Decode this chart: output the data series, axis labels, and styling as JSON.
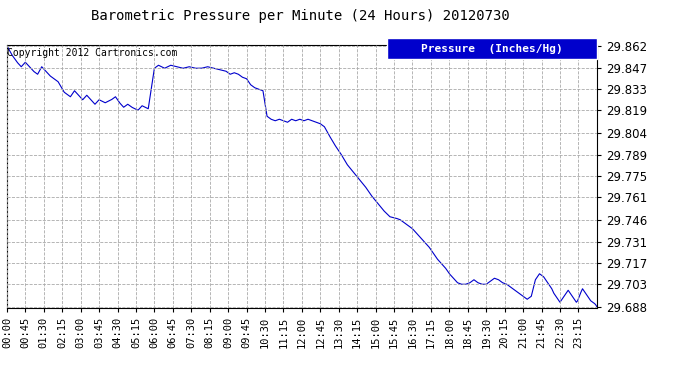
{
  "title": "Barometric Pressure per Minute (24 Hours) 20120730",
  "copyright": "Copyright 2012 Cartronics.com",
  "legend_label": "Pressure  (Inches/Hg)",
  "background_color": "#ffffff",
  "plot_bg_color": "#ffffff",
  "line_color": "#0000cc",
  "legend_bg_color": "#0000cc",
  "legend_text_color": "#ffffff",
  "grid_color": "#aaaaaa",
  "yticks": [
    29.688,
    29.703,
    29.717,
    29.731,
    29.746,
    29.761,
    29.775,
    29.789,
    29.804,
    29.819,
    29.833,
    29.847,
    29.862
  ],
  "xtick_labels": [
    "00:00",
    "00:45",
    "01:30",
    "02:15",
    "03:00",
    "03:45",
    "04:30",
    "05:15",
    "06:00",
    "06:45",
    "07:30",
    "08:15",
    "09:00",
    "09:45",
    "10:30",
    "11:15",
    "12:00",
    "12:45",
    "13:30",
    "14:15",
    "15:00",
    "15:45",
    "16:30",
    "17:15",
    "18:00",
    "18:45",
    "19:30",
    "20:15",
    "21:00",
    "21:45",
    "22:30",
    "23:15"
  ],
  "ymin": 29.688,
  "ymax": 29.862,
  "waypoints": [
    [
      0,
      29.862
    ],
    [
      12,
      29.856
    ],
    [
      25,
      29.851
    ],
    [
      35,
      29.848
    ],
    [
      45,
      29.851
    ],
    [
      55,
      29.848
    ],
    [
      65,
      29.845
    ],
    [
      75,
      29.843
    ],
    [
      85,
      29.848
    ],
    [
      95,
      29.845
    ],
    [
      105,
      29.842
    ],
    [
      115,
      29.84
    ],
    [
      125,
      29.838
    ],
    [
      140,
      29.831
    ],
    [
      155,
      29.828
    ],
    [
      165,
      29.832
    ],
    [
      175,
      29.829
    ],
    [
      185,
      29.826
    ],
    [
      195,
      29.829
    ],
    [
      205,
      29.826
    ],
    [
      215,
      29.823
    ],
    [
      225,
      29.826
    ],
    [
      240,
      29.824
    ],
    [
      255,
      29.826
    ],
    [
      265,
      29.828
    ],
    [
      275,
      29.824
    ],
    [
      285,
      29.821
    ],
    [
      295,
      29.823
    ],
    [
      305,
      29.821
    ],
    [
      320,
      29.819
    ],
    [
      330,
      29.822
    ],
    [
      345,
      29.82
    ],
    [
      360,
      29.847
    ],
    [
      370,
      29.849
    ],
    [
      385,
      29.847
    ],
    [
      400,
      29.849
    ],
    [
      415,
      29.848
    ],
    [
      430,
      29.847
    ],
    [
      445,
      29.848
    ],
    [
      460,
      29.847
    ],
    [
      475,
      29.847
    ],
    [
      490,
      29.848
    ],
    [
      505,
      29.847
    ],
    [
      520,
      29.846
    ],
    [
      535,
      29.845
    ],
    [
      545,
      29.843
    ],
    [
      555,
      29.844
    ],
    [
      565,
      29.843
    ],
    [
      575,
      29.841
    ],
    [
      585,
      29.84
    ],
    [
      595,
      29.836
    ],
    [
      605,
      29.834
    ],
    [
      615,
      29.833
    ],
    [
      625,
      29.832
    ],
    [
      635,
      29.815
    ],
    [
      645,
      29.813
    ],
    [
      655,
      29.812
    ],
    [
      665,
      29.813
    ],
    [
      675,
      29.812
    ],
    [
      685,
      29.811
    ],
    [
      695,
      29.813
    ],
    [
      705,
      29.812
    ],
    [
      715,
      29.813
    ],
    [
      725,
      29.812
    ],
    [
      735,
      29.813
    ],
    [
      745,
      29.812
    ],
    [
      755,
      29.811
    ],
    [
      765,
      29.81
    ],
    [
      775,
      29.808
    ],
    [
      785,
      29.803
    ],
    [
      800,
      29.796
    ],
    [
      815,
      29.79
    ],
    [
      830,
      29.783
    ],
    [
      845,
      29.778
    ],
    [
      860,
      29.773
    ],
    [
      875,
      29.768
    ],
    [
      890,
      29.762
    ],
    [
      905,
      29.757
    ],
    [
      920,
      29.752
    ],
    [
      935,
      29.748
    ],
    [
      950,
      29.747
    ],
    [
      960,
      29.746
    ],
    [
      970,
      29.744
    ],
    [
      980,
      29.742
    ],
    [
      990,
      29.74
    ],
    [
      1000,
      29.737
    ],
    [
      1010,
      29.734
    ],
    [
      1020,
      29.731
    ],
    [
      1030,
      29.728
    ],
    [
      1040,
      29.724
    ],
    [
      1050,
      29.72
    ],
    [
      1060,
      29.717
    ],
    [
      1070,
      29.714
    ],
    [
      1080,
      29.71
    ],
    [
      1090,
      29.707
    ],
    [
      1100,
      29.704
    ],
    [
      1110,
      29.703
    ],
    [
      1120,
      29.703
    ],
    [
      1130,
      29.704
    ],
    [
      1140,
      29.706
    ],
    [
      1150,
      29.704
    ],
    [
      1160,
      29.703
    ],
    [
      1170,
      29.703
    ],
    [
      1180,
      29.705
    ],
    [
      1190,
      29.707
    ],
    [
      1200,
      29.706
    ],
    [
      1210,
      29.704
    ],
    [
      1220,
      29.703
    ],
    [
      1230,
      29.701
    ],
    [
      1240,
      29.699
    ],
    [
      1250,
      29.697
    ],
    [
      1260,
      29.695
    ],
    [
      1270,
      29.693
    ],
    [
      1280,
      29.695
    ],
    [
      1290,
      29.706
    ],
    [
      1300,
      29.71
    ],
    [
      1310,
      29.708
    ],
    [
      1315,
      29.706
    ],
    [
      1320,
      29.704
    ],
    [
      1325,
      29.702
    ],
    [
      1330,
      29.7
    ],
    [
      1335,
      29.697
    ],
    [
      1340,
      29.695
    ],
    [
      1345,
      29.693
    ],
    [
      1350,
      29.691
    ],
    [
      1355,
      29.693
    ],
    [
      1360,
      29.695
    ],
    [
      1365,
      29.697
    ],
    [
      1370,
      29.699
    ],
    [
      1375,
      29.697
    ],
    [
      1380,
      29.695
    ],
    [
      1385,
      29.693
    ],
    [
      1390,
      29.691
    ],
    [
      1393,
      29.692
    ],
    [
      1396,
      29.694
    ],
    [
      1400,
      29.697
    ],
    [
      1405,
      29.7
    ],
    [
      1410,
      29.698
    ],
    [
      1415,
      29.696
    ],
    [
      1420,
      29.694
    ],
    [
      1425,
      29.692
    ],
    [
      1430,
      29.691
    ],
    [
      1435,
      29.69
    ],
    [
      1438,
      29.689
    ],
    [
      1440,
      29.688
    ]
  ]
}
